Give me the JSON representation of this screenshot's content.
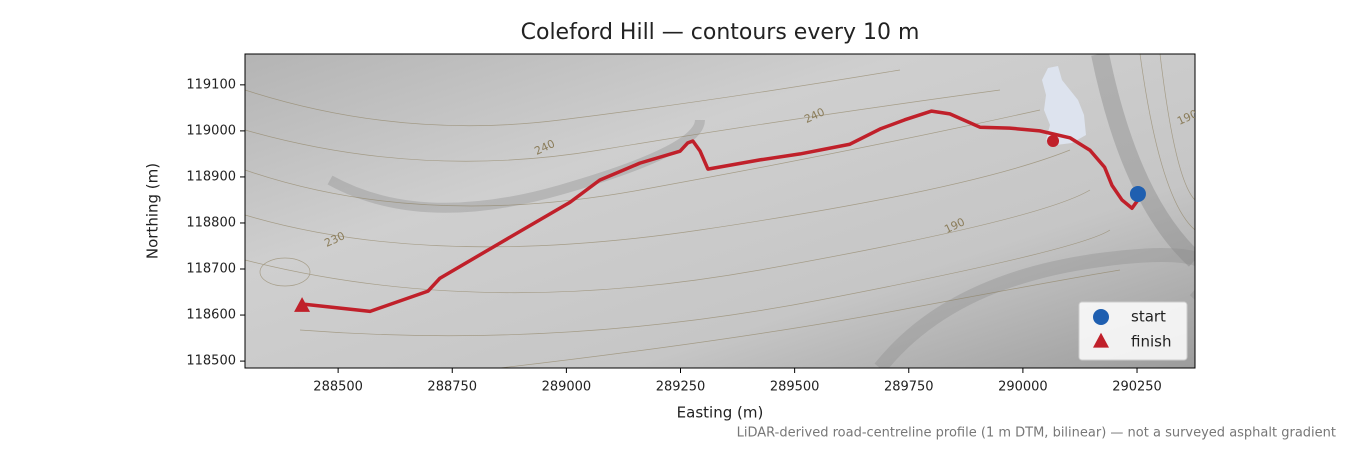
{
  "chart_data": {
    "type": "line",
    "title": "Coleford Hill — contours every 10 m",
    "xlabel": "Easting (m)",
    "ylabel": "Northing (m)",
    "note": "LiDAR-derived road-centreline profile (1 m DTM, bilinear) — not a surveyed asphalt gradient",
    "xlim": [
      288296,
      290377
    ],
    "ylim": [
      118485,
      119167
    ],
    "xticks": [
      288500,
      288750,
      289000,
      289250,
      289500,
      289750,
      290000,
      290250
    ],
    "yticks": [
      118500,
      118600,
      118700,
      118800,
      118900,
      119000,
      119100
    ],
    "route": {
      "color": "#c0202a",
      "x": [
        288421,
        288570,
        288697,
        288723,
        288854,
        289008,
        289073,
        289161,
        289249,
        289266,
        289277,
        289293,
        289310,
        289424,
        289512,
        289621,
        289687,
        289741,
        289800,
        289840,
        289906,
        289971,
        290037,
        290103,
        290147,
        290179,
        290195,
        290217,
        290239,
        290252
      ],
      "y": [
        118624,
        118608,
        118652,
        118680,
        118756,
        118845,
        118893,
        118930,
        118956,
        118974,
        118978,
        118956,
        118917,
        118937,
        118950,
        118971,
        119004,
        119024,
        119043,
        119037,
        119008,
        119006,
        119000,
        118985,
        118958,
        118921,
        118882,
        118850,
        118832,
        118850
      ]
    },
    "waypoint": {
      "color": "#c0202a",
      "x": [
        290066
      ],
      "y": [
        118978
      ]
    },
    "markers": [
      {
        "name": "start",
        "color": "#1f5fb0",
        "marker": "circle",
        "x": [
          290252
        ],
        "y": [
          118863
        ]
      },
      {
        "name": "finish",
        "color": "#c0202a",
        "marker": "triangle",
        "x": [
          288421
        ],
        "y": [
          118619
        ]
      }
    ],
    "contour_labels": [
      {
        "text": "240",
        "x": 288953,
        "y": 118963
      },
      {
        "text": "240",
        "x": 289544,
        "y": 119032
      },
      {
        "text": "190",
        "x": 289851,
        "y": 118793
      },
      {
        "text": "230",
        "x": 288493,
        "y": 118763
      },
      {
        "text": "190",
        "x": 290361,
        "y": 119028
      }
    ],
    "legend": "lower right"
  }
}
